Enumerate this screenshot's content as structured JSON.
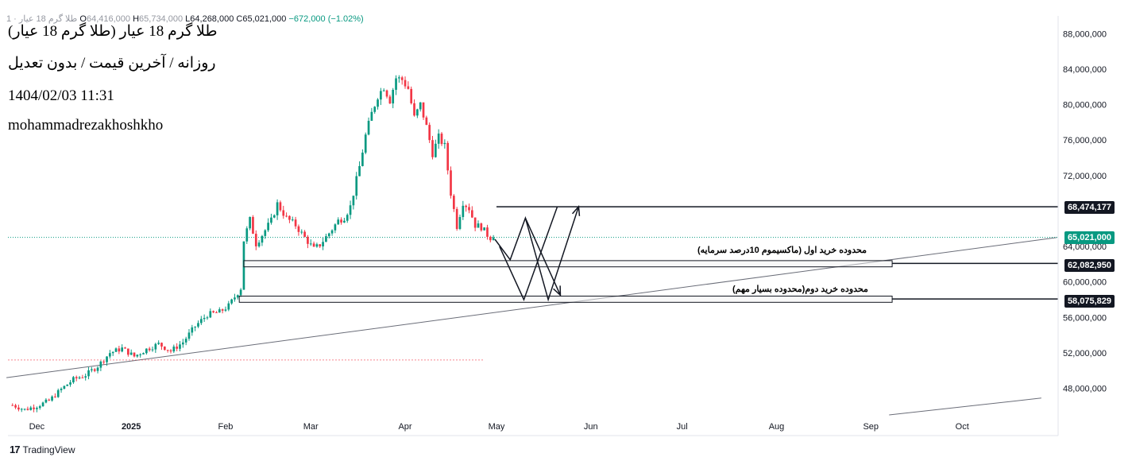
{
  "header": {
    "symbol_faded": "طلا گرم 18 عیار · 1",
    "open_label": "O",
    "open": "64,416,000",
    "high_label": "H",
    "high": "65,734,000",
    "low_label": "L",
    "low": "64,268,000",
    "close_label": "C",
    "close": "65,021,000",
    "change": "−672,000 (−1.02%)"
  },
  "annotations": {
    "title": "طلا گرم 18 عیار (طلا گرم 18 عیار)",
    "subtitle": "روزانه / آخرین قیمت / بدون تعدیل",
    "datetime": "1404/02/03 11:31",
    "author": "mohammadrezakhoshkho",
    "zone1_label": "محدوده خرید اول (ماکسیموم 10درصد سرمایه)",
    "zone2_label": "محدوده خرید دوم(محدوده بسیار مهم)"
  },
  "price_tags": {
    "resistance": "68,474,177",
    "current": "65,021,000",
    "zone1": "62,082,950",
    "zone2": "58,075,829"
  },
  "colors": {
    "up": "#089981",
    "down": "#f23645",
    "line": "#131722"
  },
  "watermark": {
    "brand": "TradingView"
  },
  "chart_data": {
    "type": "candlestick",
    "title": "طلا گرم 18 عیار",
    "timeframe": "Daily",
    "ylim": [
      45000000,
      90000000
    ],
    "y_ticks": [
      {
        "value": 48000000,
        "label": "48,000,000"
      },
      {
        "value": 52000000,
        "label": "52,000,000"
      },
      {
        "value": 56000000,
        "label": "56,000,000"
      },
      {
        "value": 60000000,
        "label": "60,000,000"
      },
      {
        "value": 64000000,
        "label": "64,000,000"
      },
      {
        "value": 72000000,
        "label": "72,000,000"
      },
      {
        "value": 76000000,
        "label": "76,000,000"
      },
      {
        "value": 80000000,
        "label": "80,000,000"
      },
      {
        "value": 84000000,
        "label": "84,000,000"
      },
      {
        "value": 88000000,
        "label": "88,000,000"
      }
    ],
    "x_ticks": [
      {
        "day": 0,
        "label": "Dec",
        "bold": false
      },
      {
        "day": 31,
        "label": "2025",
        "bold": true
      },
      {
        "day": 62,
        "label": "Feb",
        "bold": false
      },
      {
        "day": 90,
        "label": "Mar",
        "bold": false
      },
      {
        "day": 121,
        "label": "Apr",
        "bold": false
      },
      {
        "day": 151,
        "label": "May",
        "bold": false
      },
      {
        "day": 182,
        "label": "Jun",
        "bold": false
      },
      {
        "day": 212,
        "label": "Jul",
        "bold": false
      },
      {
        "day": 243,
        "label": "Aug",
        "bold": false
      },
      {
        "day": 274,
        "label": "Sep",
        "bold": false
      },
      {
        "day": 304,
        "label": "Oct",
        "bold": false
      }
    ],
    "x_range": [
      -9.5,
      335
    ],
    "price_path": [
      [
        -8,
        46100000
      ],
      [
        -4,
        45600000
      ],
      [
        0,
        46000000
      ],
      [
        4,
        46600000
      ],
      [
        8,
        47900000
      ],
      [
        12,
        49000000
      ],
      [
        16,
        49500000
      ],
      [
        20,
        50500000
      ],
      [
        24,
        52000000
      ],
      [
        28,
        52500000
      ],
      [
        32,
        51600000
      ],
      [
        36,
        52400000
      ],
      [
        40,
        53000000
      ],
      [
        44,
        52200000
      ],
      [
        48,
        53200000
      ],
      [
        52,
        55000000
      ],
      [
        56,
        56300000
      ],
      [
        60,
        56600000
      ],
      [
        63,
        57300000
      ],
      [
        65,
        58300000
      ],
      [
        67,
        59300000
      ],
      [
        68,
        64700000
      ],
      [
        70,
        67000000
      ],
      [
        72,
        64300000
      ],
      [
        74,
        65300000
      ],
      [
        77,
        66900000
      ],
      [
        79,
        68800000
      ],
      [
        82,
        67200000
      ],
      [
        85,
        66400000
      ],
      [
        88,
        65000000
      ],
      [
        91,
        63700000
      ],
      [
        93,
        64200000
      ],
      [
        96,
        65500000
      ],
      [
        99,
        66900000
      ],
      [
        101,
        67300000
      ],
      [
        103,
        68500000
      ],
      [
        106,
        73000000
      ],
      [
        108,
        76500000
      ],
      [
        110,
        79000000
      ],
      [
        112,
        81000000
      ],
      [
        114,
        82000000
      ],
      [
        116,
        80500000
      ],
      [
        118,
        83000000
      ],
      [
        120,
        82800000
      ],
      [
        122,
        81800000
      ],
      [
        124,
        78500000
      ],
      [
        126,
        80000000
      ],
      [
        128,
        77500000
      ],
      [
        130,
        74500000
      ],
      [
        132,
        76300000
      ],
      [
        134,
        75300000
      ],
      [
        136,
        70000000
      ],
      [
        138,
        66300000
      ],
      [
        140,
        69000000
      ],
      [
        142,
        68300000
      ],
      [
        144,
        66400000
      ],
      [
        146,
        66200000
      ],
      [
        148,
        65300000
      ],
      [
        150,
        64700000
      ]
    ],
    "last_close": 65021000,
    "resistance_level": 68474177,
    "buy_zone_1": {
      "top": 62400000,
      "bottom": 61700000,
      "tag": 62082950
    },
    "buy_zone_2": {
      "top": 58400000,
      "bottom": 57700000,
      "tag": 58075829
    },
    "trendline_1": {
      "from": [
        -10,
        49200000
      ],
      "to": [
        335,
        65000000
      ]
    },
    "trendline_2": {
      "from": [
        280,
        45000000
      ],
      "to": [
        330,
        46900000
      ]
    },
    "forecast_paths": [
      [
        [
          150.5,
          64800000
        ],
        [
          155.5,
          62500000
        ],
        [
          160.5,
          67200000
        ],
        [
          168,
          58000000
        ],
        [
          178,
          68500000
        ]
      ],
      [
        [
          152,
          64000000
        ],
        [
          160,
          58000000
        ],
        [
          171,
          68500000
        ]
      ],
      [
        [
          160.5,
          67200000
        ],
        [
          172,
          58500000
        ]
      ]
    ]
  }
}
